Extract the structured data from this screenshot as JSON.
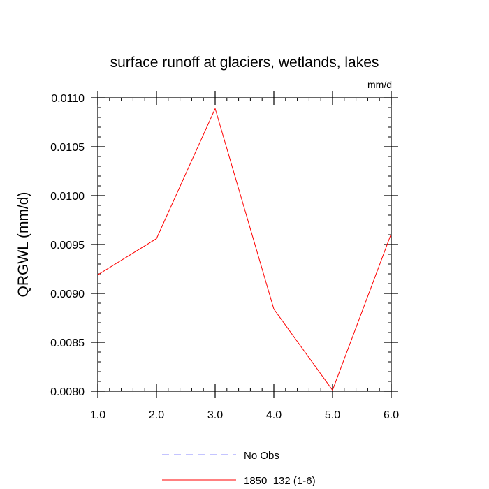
{
  "chart_data": {
    "type": "line",
    "title": "surface runoff at glaciers, wetlands, lakes",
    "units_label": "mm/d",
    "ylabel": "QRGWL  (mm/d)",
    "xlabel": "",
    "xlim": [
      1.0,
      6.0
    ],
    "ylim": [
      0.008,
      0.011
    ],
    "x_ticks": [
      "1.0",
      "2.0",
      "3.0",
      "4.0",
      "5.0",
      "6.0"
    ],
    "y_ticks": [
      "0.0080",
      "0.0085",
      "0.0090",
      "0.0095",
      "0.0100",
      "0.0105",
      "0.0110"
    ],
    "x": [
      1,
      2,
      3,
      4,
      5,
      6
    ],
    "series": [
      {
        "name": "1850_132 (1-6)",
        "color": "#ff0000",
        "dash": "solid",
        "values": [
          0.00919,
          0.00956,
          0.01089,
          0.00884,
          0.00801,
          0.00961
        ]
      }
    ],
    "legend": {
      "placement": "bottom-center",
      "entries": [
        {
          "label": "No Obs",
          "color": "#8888ff",
          "dash": "dashed"
        },
        {
          "label": "1850_132 (1-6)",
          "color": "#ff0000",
          "dash": "solid"
        }
      ]
    },
    "grid": false
  }
}
